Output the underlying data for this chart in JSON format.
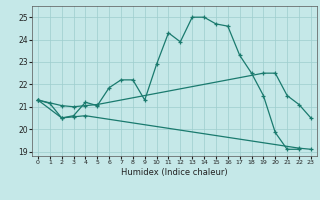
{
  "xlabel": "Humidex (Indice chaleur)",
  "bg_color": "#c5e8e8",
  "grid_color": "#9ecece",
  "line_color": "#1a7a6e",
  "xlim": [
    -0.5,
    23.5
  ],
  "ylim": [
    18.8,
    25.5
  ],
  "yticks": [
    19,
    20,
    21,
    22,
    23,
    24,
    25
  ],
  "xticks": [
    0,
    1,
    2,
    3,
    4,
    5,
    6,
    7,
    8,
    9,
    10,
    11,
    12,
    13,
    14,
    15,
    16,
    17,
    18,
    19,
    20,
    21,
    22,
    23
  ],
  "line1_x": [
    0,
    1,
    2,
    3,
    4,
    5,
    6,
    7,
    8,
    9,
    10,
    11,
    12,
    13,
    14,
    15,
    16,
    17,
    18,
    19,
    20,
    21,
    22
  ],
  "line1_y": [
    21.3,
    21.15,
    20.5,
    20.6,
    21.2,
    21.05,
    21.85,
    22.2,
    22.2,
    21.3,
    22.9,
    24.3,
    23.9,
    25.0,
    25.0,
    24.7,
    24.6,
    23.3,
    22.5,
    21.5,
    19.85,
    19.1,
    19.1
  ],
  "line2_x": [
    0,
    2,
    3,
    4,
    22,
    23
  ],
  "line2_y": [
    21.3,
    20.5,
    20.55,
    20.6,
    19.15,
    19.1
  ],
  "line3_x": [
    0,
    2,
    3,
    4,
    5,
    19,
    20,
    21,
    22,
    23
  ],
  "line3_y": [
    21.3,
    21.05,
    21.0,
    21.05,
    21.1,
    22.5,
    22.5,
    21.5,
    21.1,
    20.5
  ]
}
